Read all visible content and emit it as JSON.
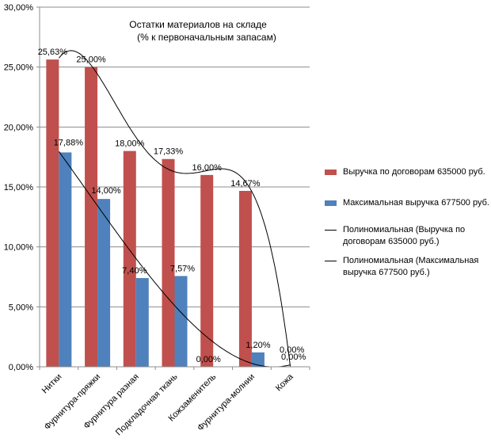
{
  "chart_data": {
    "type": "bar",
    "title": "Остатки материалов на складе",
    "subtitle": "(% к первоначальным запасам)",
    "categories": [
      "Нитки",
      "Фурнитура-пряжки",
      "Фурнитура разная",
      "Подкладочная ткань",
      "Кожзаменитель",
      "Фурнитура-молнии",
      "Кожа"
    ],
    "series": [
      {
        "name": "Выручка по договорам 635000 руб.",
        "values": [
          25.63,
          25.0,
          18.0,
          17.33,
          16.0,
          14.67,
          0.0
        ],
        "labels": [
          "25,63%",
          "25,00%",
          "18,00%",
          "17,33%",
          "16,00%",
          "14,67%",
          "0,00%"
        ],
        "color": "#c0504d"
      },
      {
        "name": "Максимальная выручка 677500 руб.",
        "values": [
          17.88,
          14.0,
          7.4,
          7.57,
          0.0,
          1.2,
          0.0
        ],
        "labels": [
          "17,88%",
          "14,00%",
          "7,40%",
          "7,57%",
          "0,00%",
          "1,20%",
          "0,00%"
        ],
        "color": "#4f81bd"
      }
    ],
    "trendlines": [
      {
        "name": "Полиномиальная (Выручка по договорам 635000 руб.)",
        "type": "polynomial",
        "color": "#000000"
      },
      {
        "name": "Полиномиальная (Максимальная выручка 677500 руб.)",
        "type": "polynomial",
        "color": "#000000"
      }
    ],
    "yticks": [
      "0,00%",
      "5,00%",
      "10,00%",
      "15,00%",
      "20,00%",
      "25,00%",
      "30,00%"
    ],
    "ylim": [
      0,
      30
    ],
    "grid": true,
    "legend_position": "right"
  }
}
